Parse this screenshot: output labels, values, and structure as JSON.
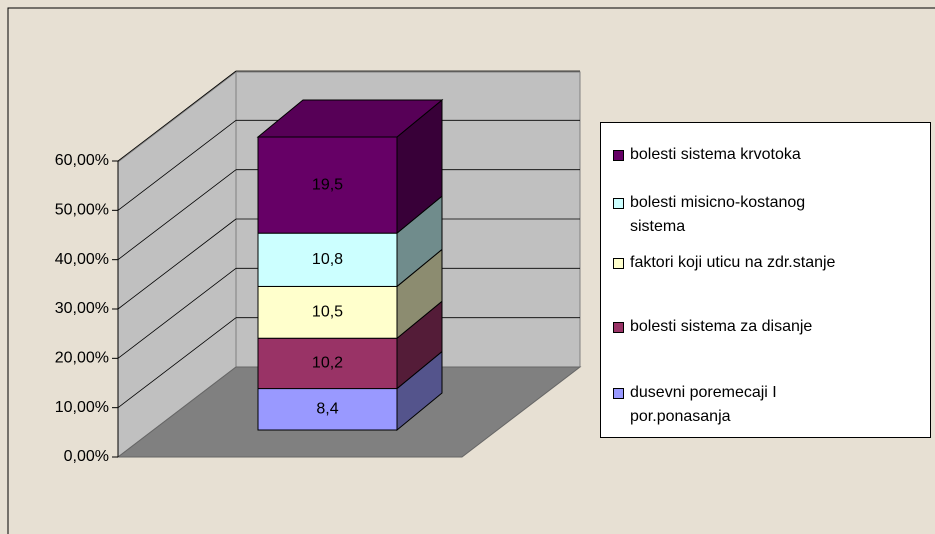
{
  "chart_data": {
    "type": "bar3d_stacked",
    "categories": [
      ""
    ],
    "series": [
      {
        "name": "dusevni poremecaji I por.ponasanja",
        "color": "#9999ff",
        "values": [
          8.4
        ],
        "value_labels": [
          "8,4"
        ]
      },
      {
        "name": "bolesti sistema za disanje",
        "color": "#993366",
        "values": [
          10.2
        ],
        "value_labels": [
          "10,2"
        ]
      },
      {
        "name": "faktori koji uticu na zdr.stanje",
        "color": "#ffffcc",
        "values": [
          10.5
        ],
        "value_labels": [
          "10,5"
        ]
      },
      {
        "name": "bolesti misicno-kostanog sistema",
        "color": "#ccffff",
        "values": [
          10.8
        ],
        "value_labels": [
          "10,8"
        ]
      },
      {
        "name": "bolesti sistema krvotoka",
        "color": "#660066",
        "values": [
          19.5
        ],
        "value_labels": [
          "19,5"
        ]
      }
    ],
    "ylim": [
      0,
      60
    ],
    "yticks": [
      {
        "value": 0,
        "label": "0,00%"
      },
      {
        "value": 10,
        "label": "10,00%"
      },
      {
        "value": 20,
        "label": "20,00%"
      },
      {
        "value": 30,
        "label": "30,00%"
      },
      {
        "value": 40,
        "label": "40,00%"
      },
      {
        "value": 50,
        "label": "50,00%"
      },
      {
        "value": 60,
        "label": "60,00%"
      }
    ],
    "grid": true,
    "legend": "right"
  }
}
